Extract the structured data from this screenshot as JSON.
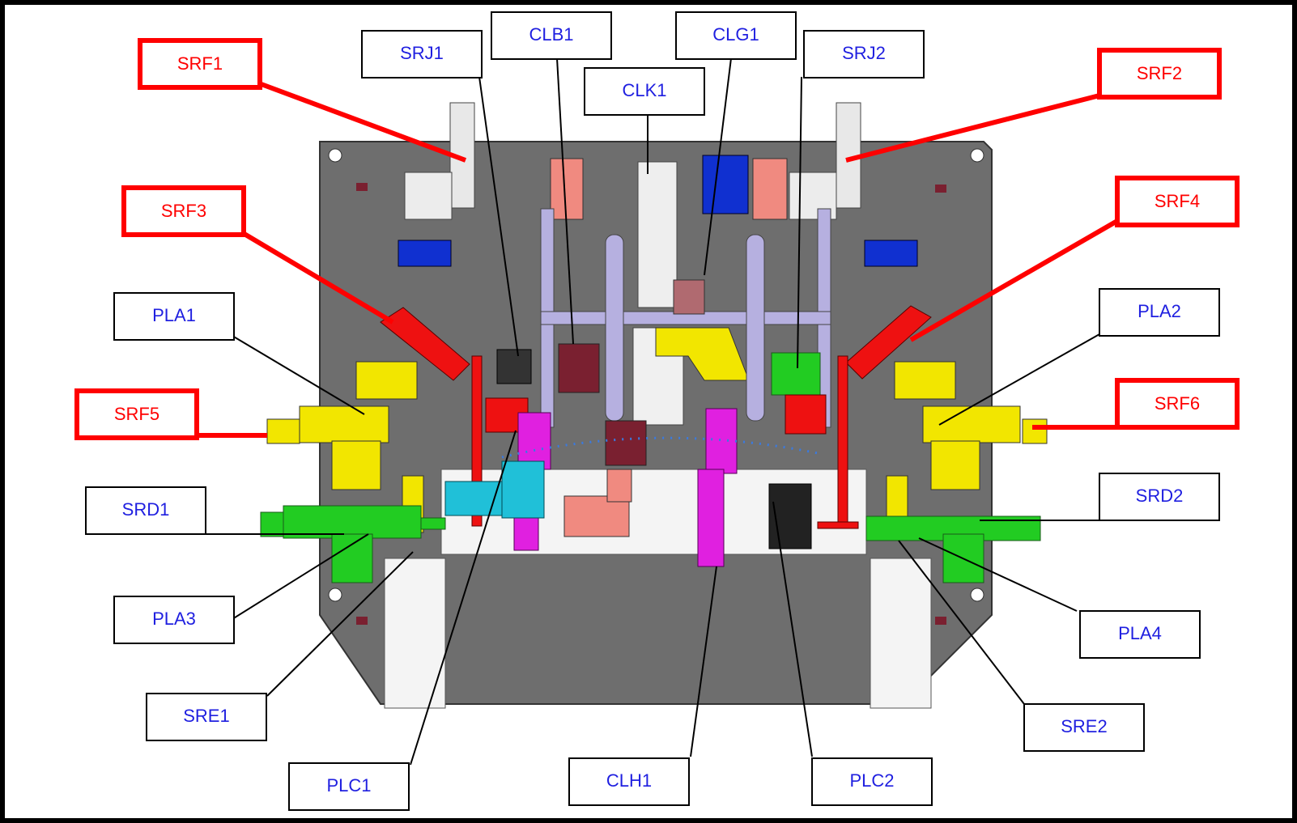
{
  "colors": {
    "blue_label": "#1f1fe0",
    "red_label": "#ff0000",
    "plate": "#6e6e6e",
    "yellow": "#f2e600",
    "green": "#22cc22",
    "red_part": "#ee1111",
    "magenta": "#e020e0",
    "cyan": "#20c0d8",
    "salmon": "#f08a80",
    "blue_part": "#1030d0",
    "lavender": "#a8a0d8",
    "maroon": "#7a2030"
  },
  "labels": {
    "SRF1": "SRF1",
    "SRF2": "SRF2",
    "SRF3": "SRF3",
    "SRF4": "SRF4",
    "SRF5": "SRF5",
    "SRF6": "SRF6",
    "SRJ1": "SRJ1",
    "SRJ2": "SRJ2",
    "CLB1": "CLB1",
    "CLG1": "CLG1",
    "CLK1": "CLK1",
    "PLA1": "PLA1",
    "PLA2": "PLA2",
    "PLA3": "PLA3",
    "PLA4": "PLA4",
    "SRD1": "SRD1",
    "SRD2": "SRD2",
    "SRE1": "SRE1",
    "SRE2": "SRE2",
    "PLC1": "PLC1",
    "PLC2": "PLC2",
    "CLH1": "CLH1"
  }
}
